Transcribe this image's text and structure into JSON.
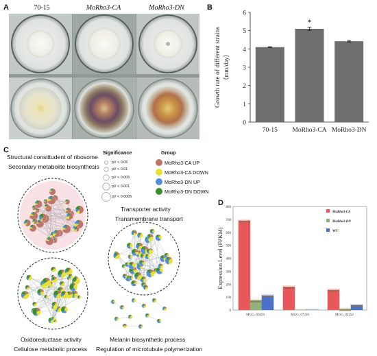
{
  "panels": {
    "a": "A",
    "b": "B",
    "c": "C",
    "d": "D"
  },
  "panel_a": {
    "columns": [
      "70-15",
      "MoRho3-CA",
      "MoRho3-DN"
    ],
    "colors": {
      "bg": "#c7cdc9",
      "dish_rim": "#5f6b66",
      "agar": "#e8ece9",
      "colony_white": "#f4f4ef",
      "colony_dark": "#6a4d5c",
      "colony_orange": "#b78a4d"
    }
  },
  "panel_b": {
    "chart_data": {
      "type": "bar",
      "categories": [
        "70-15",
        "MoRho3-CA",
        "MoRho3-DN"
      ],
      "values": [
        4.1,
        5.1,
        4.42
      ],
      "errors": [
        0.02,
        0.08,
        0.04
      ],
      "significance": [
        "",
        "*",
        ""
      ],
      "ylabel": "Growth rate of different strains",
      "ylabel_unit": "（mm/day）",
      "ylim": [
        0,
        6
      ],
      "yticks": [
        "0",
        "1",
        "2",
        "3",
        "4",
        "5",
        "6"
      ],
      "bar_color": "#6e6e6e"
    }
  },
  "panel_c": {
    "labels": {
      "top_left_1": "Structural constitudent of ribosome",
      "top_left_2": "Secondary metabolite biosynthesis",
      "top_right_1": "Transporter activity",
      "top_right_2": "Transmembrane transport",
      "bottom_left_1": "Oxidoreductase activity",
      "bottom_left_2": "Cellulose metabolic process",
      "bottom_right_1": "Melanin biosynthetic process",
      "bottom_right_2": "Regulation of microtubule polymerization"
    },
    "significance_title": "Significance",
    "significance_levels": [
      "pV < 0.05",
      "pV < 0.01",
      "pV < 0.005",
      "pV < 0.001",
      "pV < 0.0005"
    ],
    "group_title": "Group",
    "groups": [
      {
        "name": "MoRho3-CA UP",
        "color": "#c0756b"
      },
      {
        "name": "MoRho3-CA DOWN",
        "color": "#e6e22e"
      },
      {
        "name": "MoRho3-DN UP",
        "color": "#4f8fe0"
      },
      {
        "name": "MoRho3-DN DOWN",
        "color": "#3b8f2a"
      }
    ]
  },
  "panel_d": {
    "chart_data": {
      "type": "bar",
      "categories": [
        "MGG_05059",
        "MGG_07216",
        "MGG_02252"
      ],
      "series": [
        {
          "name": "MoRho3-CA",
          "values": [
            690,
            180,
            155
          ],
          "color": "#e8585a"
        },
        {
          "name": "MoRho3-DN",
          "values": [
            75,
            0,
            8
          ],
          "color": "#90b27a"
        },
        {
          "name": "WT",
          "values": [
            112,
            0,
            38
          ],
          "color": "#4b72c9"
        }
      ],
      "ylabel": "Expression Level (FPKM)",
      "ylim": [
        0,
        800
      ],
      "yticks": [
        "0",
        "100",
        "200",
        "300",
        "400",
        "500",
        "600",
        "700",
        "800"
      ]
    }
  }
}
